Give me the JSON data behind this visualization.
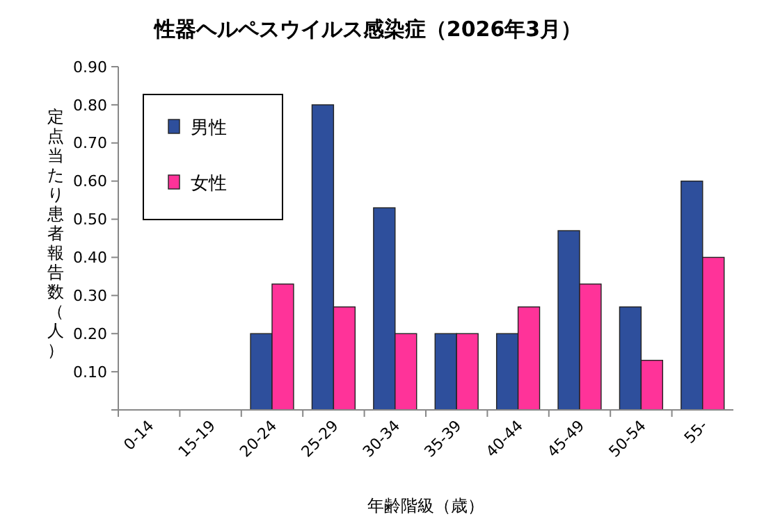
{
  "chart_data": {
    "type": "bar",
    "title": "性器ヘルペスウイルス感染症（2026年3月）",
    "xlabel": "年齢階級（歳）",
    "ylabel": "定点当たり患者報告数（人）",
    "categories": [
      "0-14",
      "15-19",
      "20-24",
      "25-29",
      "30-34",
      "35-39",
      "40-44",
      "45-49",
      "50-54",
      "55-"
    ],
    "series": [
      {
        "name": "男性",
        "color": "#2e4f9c",
        "values": [
          0,
          0,
          0.2,
          0.8,
          0.53,
          0.2,
          0.2,
          0.47,
          0.27,
          0.6
        ]
      },
      {
        "name": "女性",
        "color": "#ff3399",
        "values": [
          0,
          0,
          0.33,
          0.27,
          0.2,
          0.2,
          0.27,
          0.33,
          0.13,
          0.4
        ]
      }
    ],
    "ylim": [
      0,
      0.9
    ],
    "yticks": [
      {
        "value": 0,
        "label": null
      },
      {
        "value": 0.1,
        "label": "0.10"
      },
      {
        "value": 0.2,
        "label": "0.20"
      },
      {
        "value": 0.3,
        "label": "0.30"
      },
      {
        "value": 0.4,
        "label": "0.40"
      },
      {
        "value": 0.5,
        "label": "0.50"
      },
      {
        "value": 0.6,
        "label": "0.60"
      },
      {
        "value": 0.7,
        "label": "0.70"
      },
      {
        "value": 0.8,
        "label": "0.80"
      },
      {
        "value": 0.9,
        "label": "0.90"
      }
    ],
    "legend": "top left"
  }
}
